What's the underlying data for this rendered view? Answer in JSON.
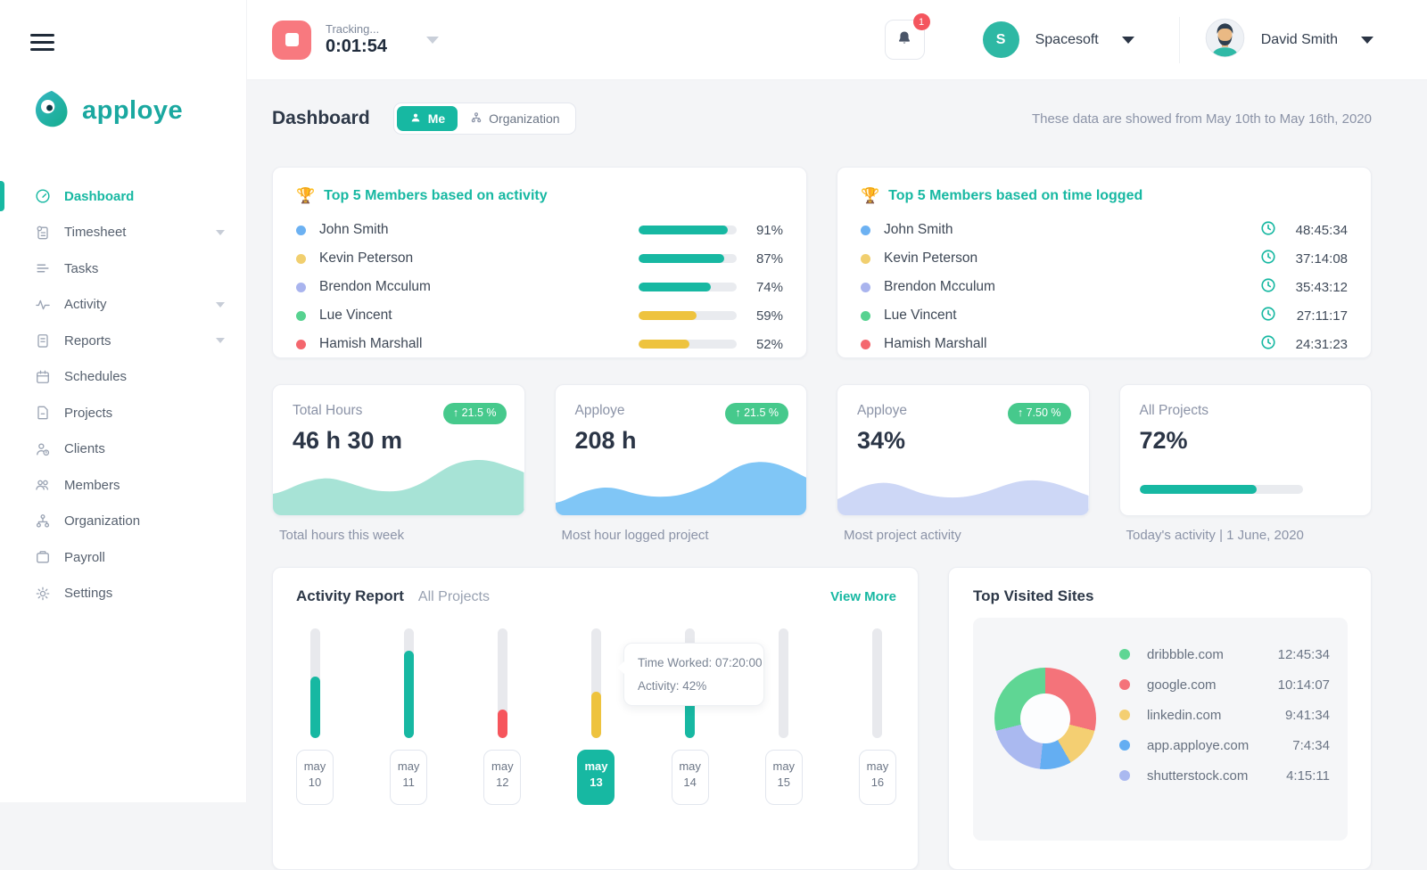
{
  "palette": {
    "accent_teal": "#17b8a2",
    "badge_green": "#46c98c",
    "alert_red": "#f4555e",
    "stop_salmon": "#f8797f"
  },
  "brand": {
    "logo_text": "apploye"
  },
  "topbar": {
    "tracking_label": "Tracking...",
    "tracking_time": "0:01:54",
    "notification_count": "1",
    "workspace_initial": "S",
    "workspace_name": "Spacesoft",
    "user_name": "David Smith"
  },
  "sidebar": {
    "items": [
      {
        "label": "Dashboard"
      },
      {
        "label": "Timesheet"
      },
      {
        "label": "Tasks"
      },
      {
        "label": "Activity"
      },
      {
        "label": "Reports"
      },
      {
        "label": "Schedules"
      },
      {
        "label": "Projects"
      },
      {
        "label": "Clients"
      },
      {
        "label": "Members"
      },
      {
        "label": "Organization"
      },
      {
        "label": "Payroll"
      },
      {
        "label": "Settings"
      }
    ]
  },
  "header": {
    "title": "Dashboard",
    "toggle_me": "Me",
    "toggle_org": "Organization",
    "date_note": "These data are showed from May 10th to May 16th, 2020"
  },
  "top_members_activity": {
    "icon": "🏆",
    "title": "Top 5 Members based on activity",
    "rows": [
      {
        "name": "John Smith",
        "percent": "91%",
        "dot_color": "#6cb1f2",
        "bar_color": "#17b8a2"
      },
      {
        "name": "Kevin Peterson",
        "percent": "87%",
        "dot_color": "#f1cf6f",
        "bar_color": "#17b8a2"
      },
      {
        "name": "Brendon Mcculum",
        "percent": "74%",
        "dot_color": "#a9b4ee",
        "bar_color": "#17b8a2"
      },
      {
        "name": "Lue Vincent",
        "percent": "59%",
        "dot_color": "#57d290",
        "bar_color": "#eec33e"
      },
      {
        "name": "Hamish Marshall",
        "percent": "52%",
        "dot_color": "#f4676e",
        "bar_color": "#eec33e"
      }
    ]
  },
  "top_members_time": {
    "icon": "🏆",
    "title": "Top 5 Members based on time logged",
    "rows": [
      {
        "name": "John Smith",
        "time": "48:45:34",
        "dot_color": "#6cb1f2"
      },
      {
        "name": "Kevin Peterson",
        "time": "37:14:08",
        "dot_color": "#f1cf6f"
      },
      {
        "name": "Brendon Mcculum",
        "time": "35:43:12",
        "dot_color": "#a9b4ee"
      },
      {
        "name": "Lue Vincent",
        "time": "27:11:17",
        "dot_color": "#57d290"
      },
      {
        "name": "Hamish Marshall",
        "time": "24:31:23",
        "dot_color": "#f4676e"
      }
    ]
  },
  "stats": {
    "cards": [
      {
        "label": "Total Hours",
        "value": "46 h 30 m",
        "badge": "↑ 21.5 %",
        "caption": "Total hours this week"
      },
      {
        "label": "Apploye",
        "value": "208 h",
        "badge": "↑ 21.5 %",
        "caption": "Most hour logged project"
      },
      {
        "label": "Apploye",
        "value": "34%",
        "badge": "↑ 7.50 %",
        "caption": "Most project activity"
      },
      {
        "label": "All Projects",
        "value": "72%",
        "progress": "72%",
        "progress_color": "#17b8a2",
        "caption": "Today's activity | 1 June, 2020"
      }
    ]
  },
  "activity_report": {
    "title": "Activity Report",
    "subtitle": "All Projects",
    "view_more": "View More",
    "tooltip": {
      "line1": "Time Worked: 07:20:00",
      "line2": "Activity: 42%"
    },
    "days": [
      {
        "month": "may",
        "day": "10",
        "fill": "56%",
        "color": "#17b8a2"
      },
      {
        "month": "may",
        "day": "11",
        "fill": "80%",
        "color": "#17b8a2"
      },
      {
        "month": "may",
        "day": "12",
        "fill": "26%",
        "color": "#f6555c"
      },
      {
        "month": "may",
        "day": "13",
        "fill": "42%",
        "color": "#eec33e"
      },
      {
        "month": "may",
        "day": "14",
        "fill": "55%",
        "color": "#17b8a2"
      },
      {
        "month": "may",
        "day": "15",
        "fill": "0%",
        "color": "#17b8a2"
      },
      {
        "month": "may",
        "day": "16",
        "fill": "0%",
        "color": "#17b8a2"
      }
    ]
  },
  "top_visited": {
    "title": "Top Visited Sites",
    "donut": {
      "segments": [
        {
          "color": "#f4737a",
          "from": 0,
          "to": 104
        },
        {
          "color": "#f4cf72",
          "from": 104,
          "to": 150
        },
        {
          "color": "#64aef2",
          "from": 150,
          "to": 186
        },
        {
          "color": "#aab9f0",
          "from": 186,
          "to": 256
        },
        {
          "color": "#5fd694",
          "from": 256,
          "to": 360
        }
      ]
    },
    "sites": [
      {
        "name": "dribbble.com",
        "time": "12:45:34",
        "dot_color": "#5fd694"
      },
      {
        "name": "google.com",
        "time": "10:14:07",
        "dot_color": "#f4737a"
      },
      {
        "name": "linkedin.com",
        "time": "9:41:34",
        "dot_color": "#f4cf72"
      },
      {
        "name": "app.apploye.com",
        "time": "7:4:34",
        "dot_color": "#64aef2"
      },
      {
        "name": "shutterstock.com",
        "time": "4:15:11",
        "dot_color": "#aab9f0"
      }
    ]
  }
}
